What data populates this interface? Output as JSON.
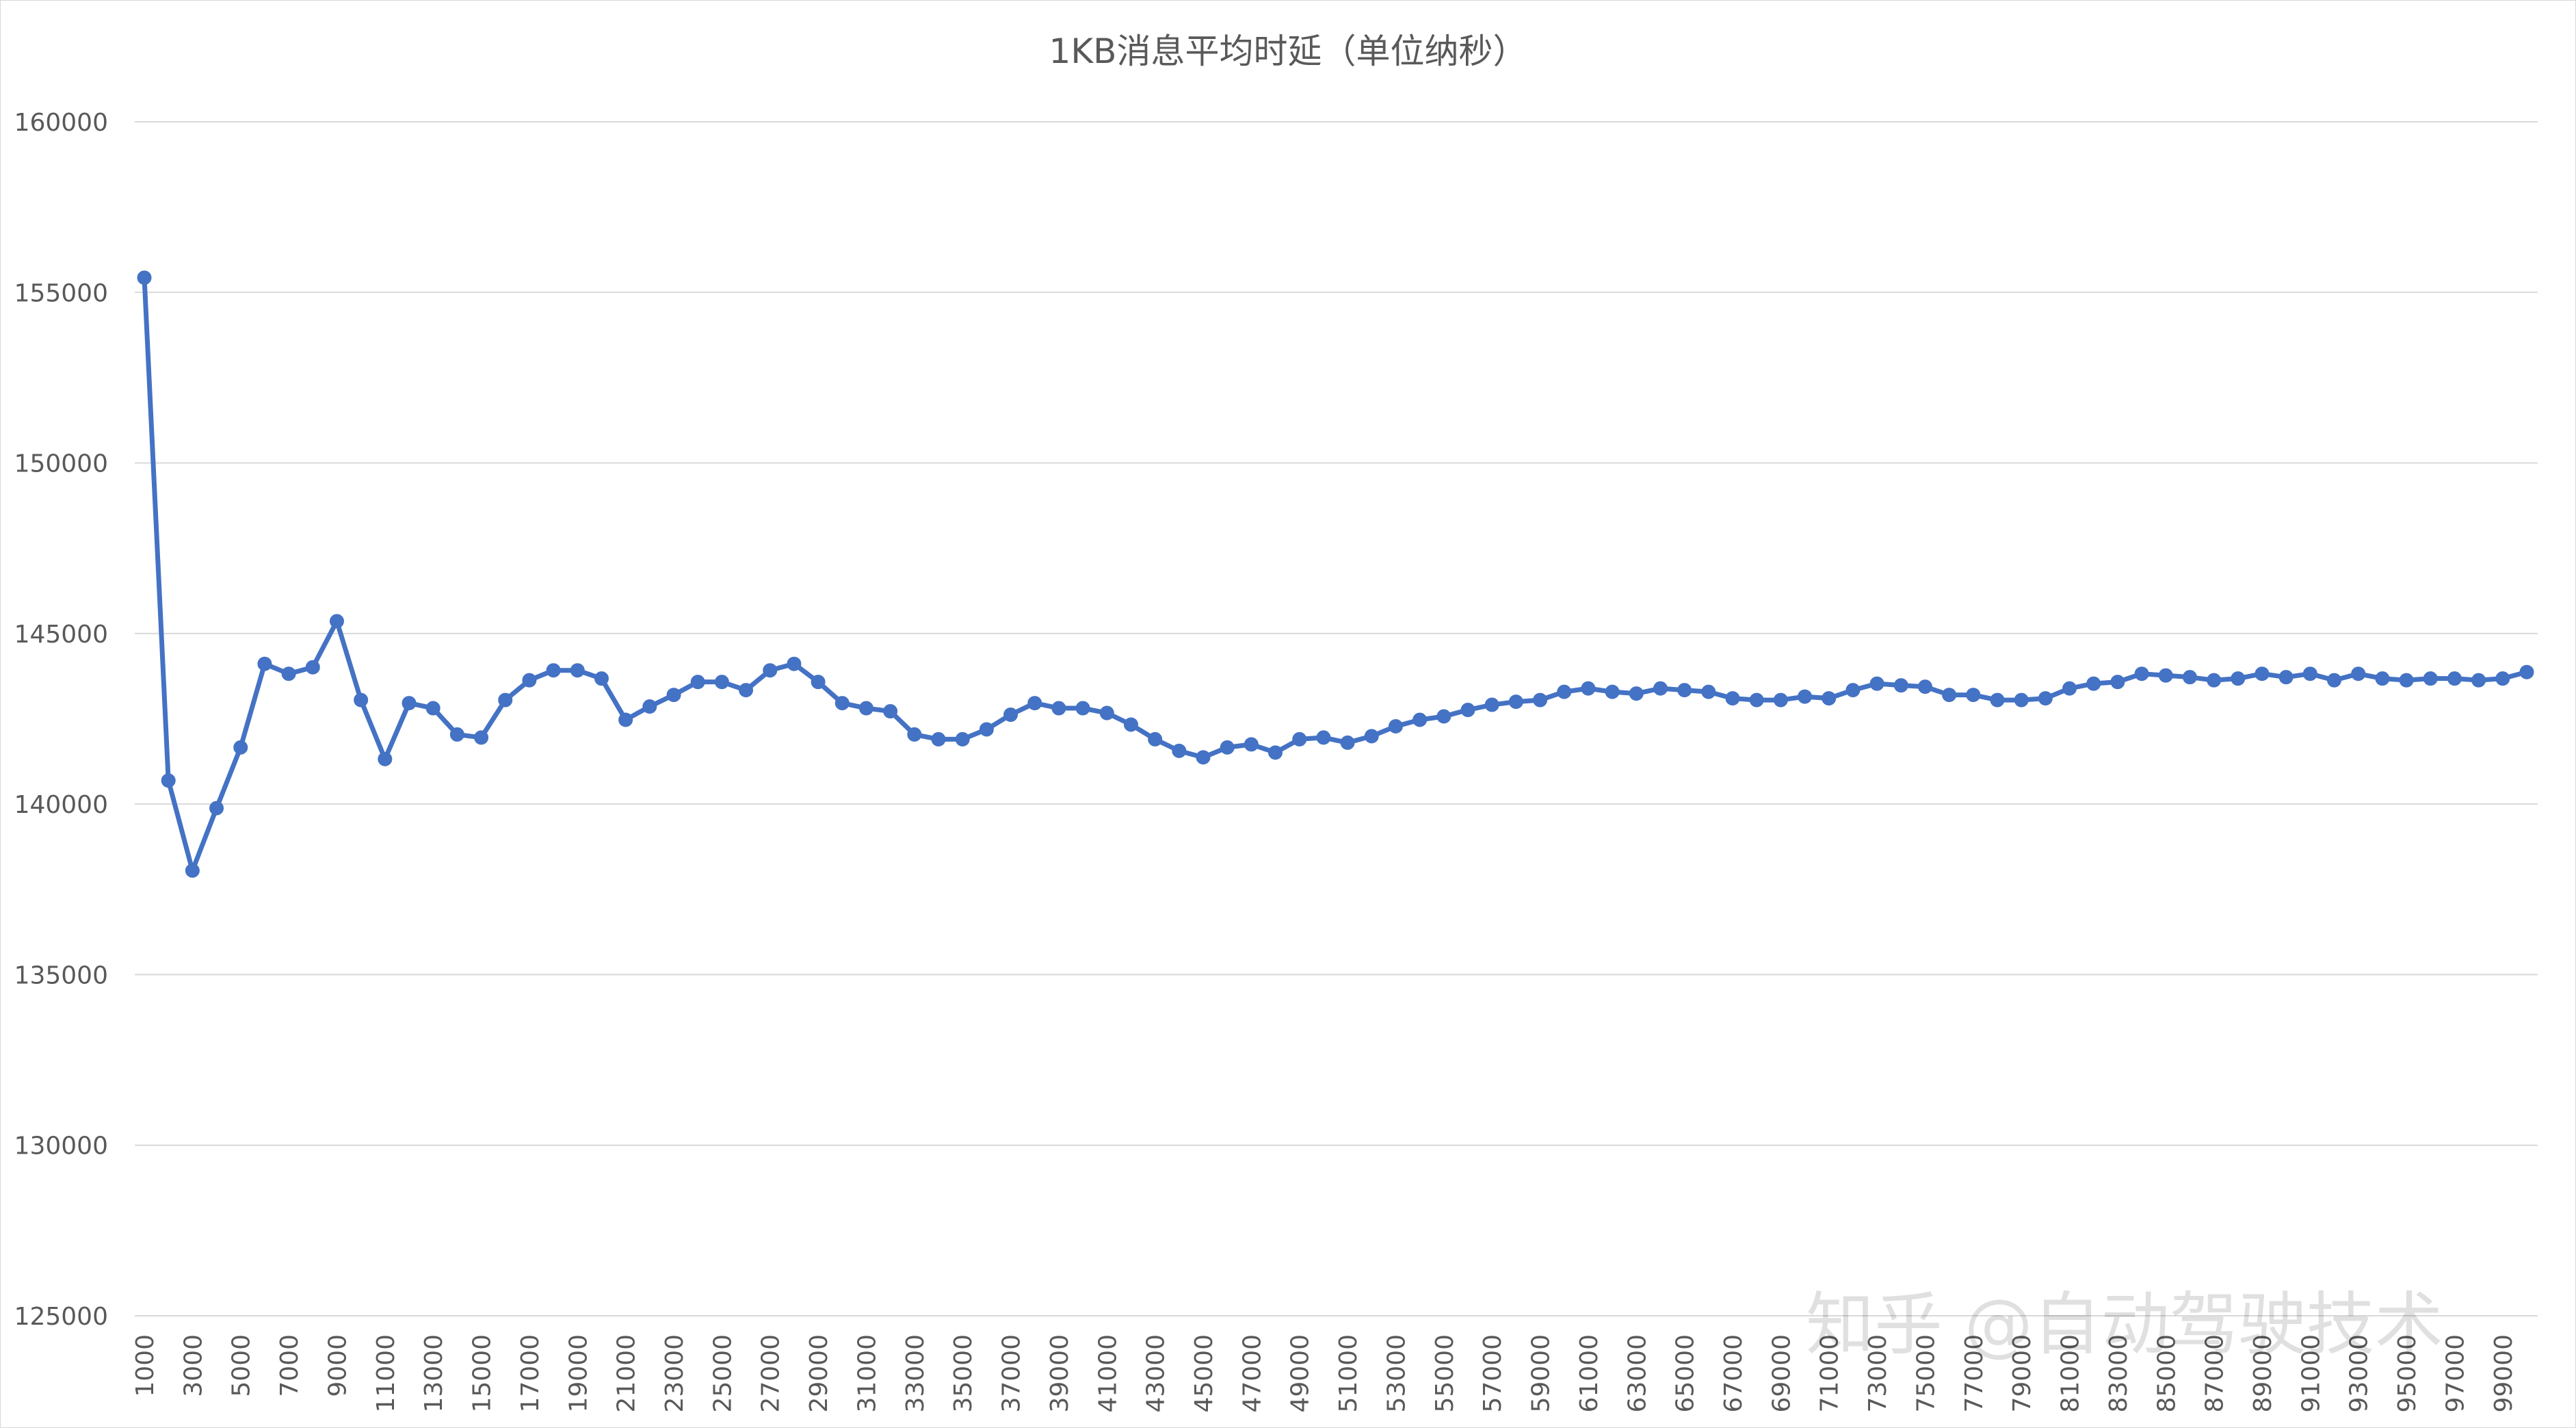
{
  "chart_data": {
    "type": "line",
    "title": "1KB消息平均时延（单位纳秒）",
    "xlabel": "",
    "ylabel": "",
    "ylim": [
      125000,
      160000
    ],
    "y_ticks": [
      125000,
      130000,
      135000,
      140000,
      145000,
      150000,
      155000,
      160000
    ],
    "x_tick_labels": [
      "1000",
      "3000",
      "5000",
      "7000",
      "9000",
      "11000",
      "13000",
      "15000",
      "17000",
      "19000",
      "21000",
      "23000",
      "25000",
      "27000",
      "29000",
      "31000",
      "33000",
      "35000",
      "37000",
      "39000",
      "41000",
      "43000",
      "45000",
      "47000",
      "49000",
      "51000",
      "53000",
      "55000",
      "57000",
      "59000",
      "61000",
      "63000",
      "65000",
      "67000",
      "69000",
      "71000",
      "73000",
      "75000",
      "77000",
      "79000",
      "81000",
      "83000",
      "85000",
      "87000",
      "89000",
      "91000",
      "93000",
      "95000",
      "97000",
      "99000"
    ],
    "grid": true,
    "legend": "none",
    "color": "#4472c4",
    "x": [
      1000,
      2000,
      3000,
      4000,
      5000,
      6000,
      7000,
      8000,
      9000,
      10000,
      11000,
      12000,
      13000,
      14000,
      15000,
      16000,
      17000,
      18000,
      19000,
      20000,
      21000,
      22000,
      23000,
      24000,
      25000,
      26000,
      27000,
      28000,
      29000,
      30000,
      31000,
      32000,
      33000,
      34000,
      35000,
      36000,
      37000,
      38000,
      39000,
      40000,
      41000,
      42000,
      43000,
      44000,
      45000,
      46000,
      47000,
      48000,
      49000,
      50000,
      51000,
      52000,
      53000,
      54000,
      55000,
      56000,
      57000,
      58000,
      59000,
      60000,
      61000,
      62000,
      63000,
      64000,
      65000,
      66000,
      67000,
      68000,
      69000,
      70000,
      71000,
      72000,
      73000,
      74000,
      75000,
      76000,
      77000,
      78000,
      79000,
      80000,
      81000,
      82000,
      83000,
      84000,
      85000,
      86000,
      87000,
      88000,
      89000,
      90000,
      91000,
      92000,
      93000,
      94000,
      95000,
      96000,
      97000,
      98000,
      99000,
      100000
    ],
    "values": [
      155430,
      140690,
      138050,
      139880,
      141660,
      144110,
      143820,
      144010,
      145360,
      143050,
      141320,
      142960,
      142810,
      142040,
      141950,
      143050,
      143630,
      143920,
      143920,
      143680,
      142470,
      142860,
      143200,
      143580,
      143580,
      143340,
      143920,
      144110,
      143580,
      142960,
      142810,
      142720,
      142040,
      141900,
      141900,
      142190,
      142620,
      142960,
      142810,
      142810,
      142670,
      142330,
      141900,
      141560,
      141370,
      141660,
      141750,
      141510,
      141900,
      141950,
      141800,
      141990,
      142280,
      142470,
      142570,
      142760,
      142910,
      143000,
      143050,
      143290,
      143390,
      143290,
      143240,
      143390,
      143340,
      143290,
      143100,
      143050,
      143050,
      143150,
      143100,
      143340,
      143530,
      143480,
      143440,
      143200,
      143200,
      143050,
      143050,
      143100,
      143390,
      143530,
      143580,
      143820,
      143770,
      143720,
      143630,
      143680,
      143820,
      143720,
      143820,
      143630,
      143820,
      143680,
      143630,
      143680,
      143680,
      143630,
      143680,
      143870
    ]
  },
  "watermark": "知乎 @自动驾驶技术"
}
